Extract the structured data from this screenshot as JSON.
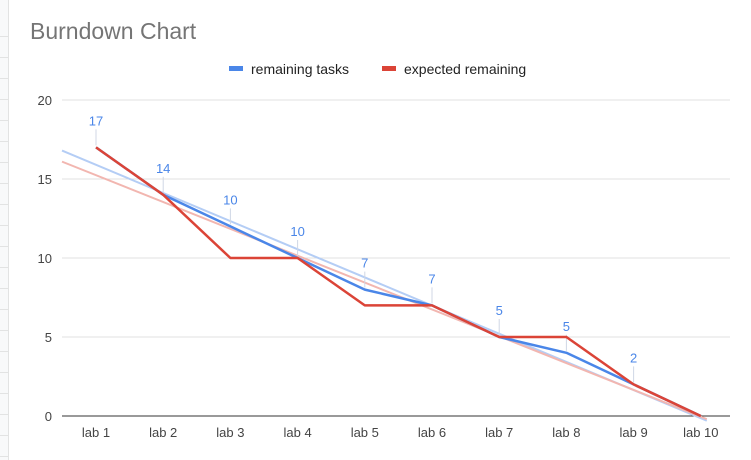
{
  "chart_data": {
    "type": "line",
    "title": "Burndown Chart",
    "categories": [
      "lab 1",
      "lab 2",
      "lab 3",
      "lab 4",
      "lab 5",
      "lab 6",
      "lab 7",
      "lab 8",
      "lab 9",
      "lab 10"
    ],
    "series": [
      {
        "name": "remaining tasks",
        "color": "#4a86e8",
        "values": [
          17,
          14,
          12,
          10,
          8,
          7,
          5,
          4,
          2,
          0
        ]
      },
      {
        "name": "expected remaining",
        "color": "#db4437",
        "values": [
          17,
          14,
          10,
          10,
          7,
          7,
          5,
          5,
          2,
          0
        ]
      }
    ],
    "data_labels": [
      "17",
      "14",
      "10",
      "10",
      "7",
      "7",
      "5",
      "5",
      "2",
      ""
    ],
    "trendlines": [
      {
        "series": "remaining tasks",
        "color": "#b4cdf5",
        "start": 16.8,
        "end": -0.3
      },
      {
        "series": "expected remaining",
        "color": "#f2b6b0",
        "start": 16.1,
        "end": -0.2
      }
    ],
    "y_ticks": [
      "0",
      "5",
      "10",
      "15",
      "20"
    ],
    "ylim": [
      0,
      20
    ],
    "grid": true,
    "legend_position": "top"
  }
}
